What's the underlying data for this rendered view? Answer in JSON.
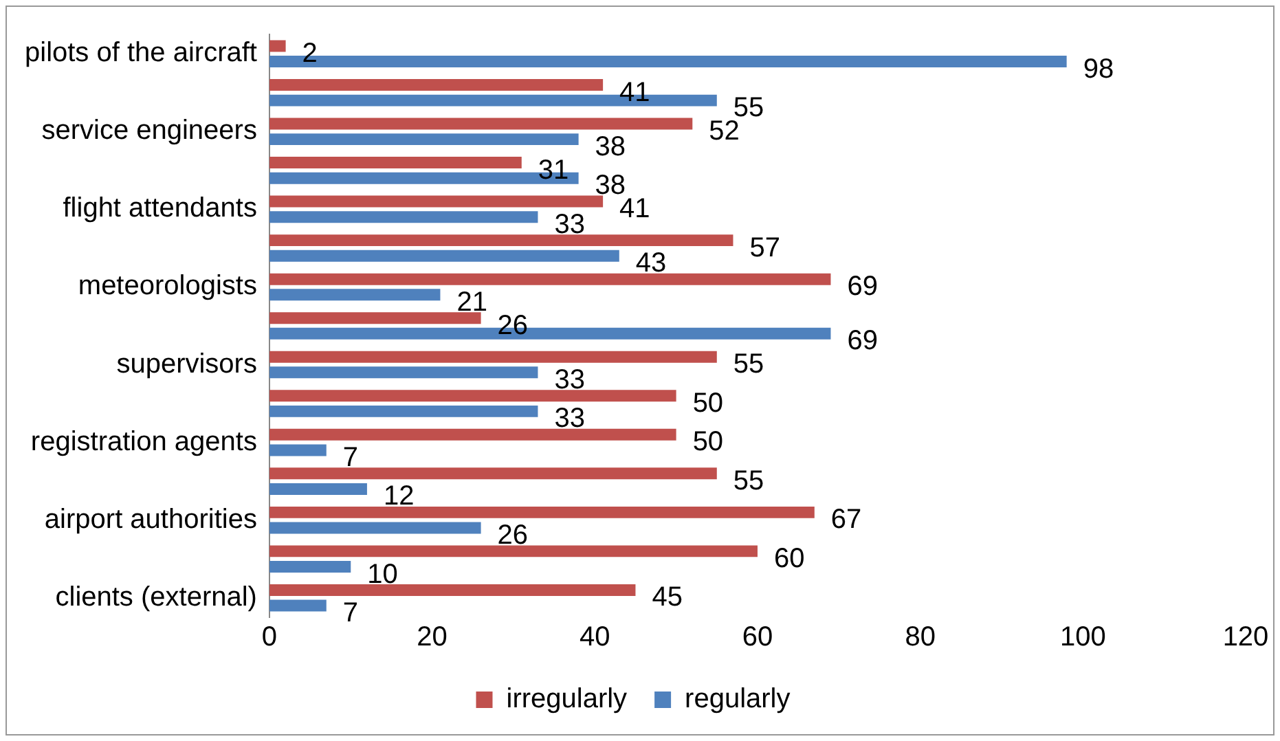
{
  "chart_data": {
    "type": "bar",
    "orientation": "horizontal",
    "categories": [
      "pilots of the aircraft",
      null,
      "service engineers",
      null,
      "flight attendants",
      null,
      "meteorologists",
      null,
      "supervisors",
      null,
      "registration agents",
      null,
      "airport authorities",
      null,
      "clients (external)"
    ],
    "series": [
      {
        "name": "irregularly",
        "color": "#c0504d",
        "values": [
          2,
          41,
          52,
          31,
          41,
          57,
          69,
          26,
          55,
          50,
          50,
          55,
          67,
          60,
          45
        ]
      },
      {
        "name": "regularly",
        "color": "#4f81bd",
        "values": [
          98,
          55,
          38,
          38,
          33,
          43,
          21,
          69,
          33,
          33,
          7,
          12,
          26,
          10,
          7
        ]
      }
    ],
    "xlim": [
      0,
      120
    ],
    "xticks": [
      0,
      20,
      40,
      60,
      80,
      100,
      120
    ],
    "grid": false,
    "legend": "bottom",
    "data_labels": true
  }
}
